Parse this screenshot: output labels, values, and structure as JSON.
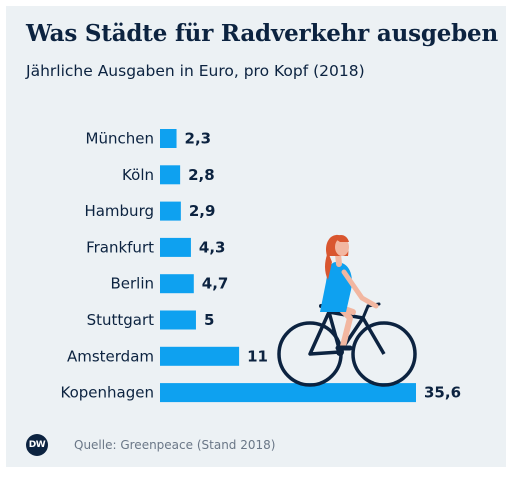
{
  "header": {
    "title": "Was Städte für Radverkehr ausgeben",
    "subtitle": "Jährliche Ausgaben in Euro, pro Kopf (2018)"
  },
  "footer": {
    "logo_text": "DW",
    "source": "Quelle: Greenpeace (Stand 2018)"
  },
  "colors": {
    "bar": "#0ea1f0",
    "text": "#0c2340",
    "background": "#ecf1f4"
  },
  "chart_data": {
    "type": "bar",
    "orientation": "horizontal",
    "categories": [
      "München",
      "Köln",
      "Hamburg",
      "Frankfurt",
      "Berlin",
      "Stuttgart",
      "Amsterdam",
      "Kopenhagen"
    ],
    "values": [
      2.3,
      2.8,
      2.9,
      4.3,
      4.7,
      5,
      11,
      35.6
    ],
    "value_labels": [
      "2,3",
      "2,8",
      "2,9",
      "4,3",
      "4,7",
      "5",
      "11",
      "35,6"
    ],
    "title": "Was Städte für Radverkehr ausgeben",
    "subtitle": "Jährliche Ausgaben in Euro, pro Kopf (2018)",
    "grid": false,
    "legend": "none"
  }
}
